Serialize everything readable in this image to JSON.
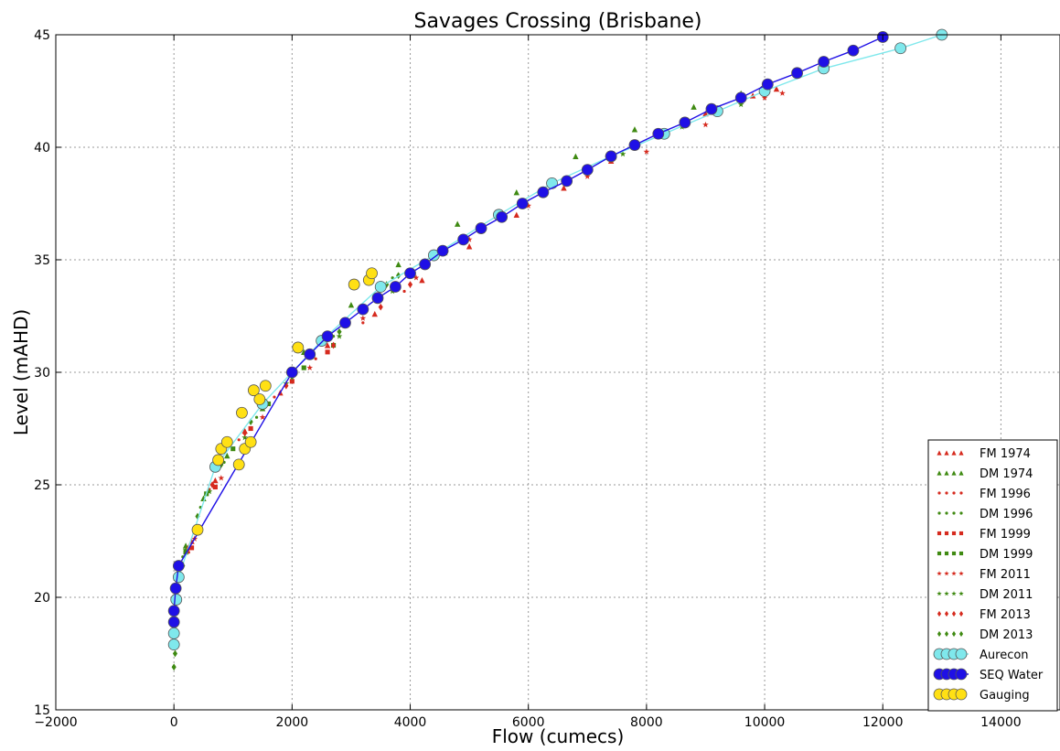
{
  "chart_data": {
    "type": "scatter",
    "title": "Savages Crossing (Brisbane)",
    "xlabel": "Flow (cumecs)",
    "ylabel": "Level (mAHD)",
    "xlim": [
      -2000,
      15000
    ],
    "ylim": [
      15,
      45
    ],
    "xticks": [
      "−2000",
      "0",
      "2000",
      "4000",
      "6000",
      "8000",
      "10000",
      "12000",
      "14000"
    ],
    "yticks": [
      "15",
      "20",
      "25",
      "30",
      "35",
      "40",
      "45"
    ],
    "grid": true,
    "legend_position": "bottom-right",
    "series": [
      {
        "name": "FM 1974",
        "color": "#d62a1e",
        "marker": "triangle",
        "points": [
          [
            300,
            22.5
          ],
          [
            700,
            25.2
          ],
          [
            1200,
            27.4
          ],
          [
            1800,
            29.1
          ],
          [
            2600,
            31.2
          ],
          [
            3400,
            32.6
          ],
          [
            4200,
            34.1
          ],
          [
            5000,
            35.6
          ],
          [
            5800,
            37.0
          ],
          [
            6600,
            38.2
          ],
          [
            7400,
            39.4
          ],
          [
            8200,
            40.5
          ],
          [
            9000,
            41.5
          ],
          [
            9800,
            42.3
          ],
          [
            10200,
            42.6
          ]
        ]
      },
      {
        "name": "DM 1974",
        "color": "#3f8a12",
        "marker": "triangle",
        "points": [
          [
            200,
            22.3
          ],
          [
            500,
            24.4
          ],
          [
            900,
            26.3
          ],
          [
            1500,
            28.4
          ],
          [
            2200,
            30.9
          ],
          [
            3000,
            33.0
          ],
          [
            3800,
            34.8
          ],
          [
            4800,
            36.6
          ],
          [
            5800,
            38.0
          ],
          [
            6800,
            39.6
          ],
          [
            7800,
            40.8
          ],
          [
            8800,
            41.8
          ],
          [
            9600,
            42.4
          ],
          [
            10000,
            42.7
          ]
        ]
      },
      {
        "name": "FM 1996",
        "color": "#d62a1e",
        "marker": "dot",
        "points": [
          [
            250,
            22.0
          ],
          [
            600,
            24.8
          ],
          [
            1100,
            27.0
          ],
          [
            1700,
            28.9
          ],
          [
            2400,
            30.6
          ],
          [
            3200,
            32.2
          ],
          [
            3900,
            33.6
          ]
        ]
      },
      {
        "name": "DM 1996",
        "color": "#3f8a12",
        "marker": "dot",
        "points": [
          [
            150,
            21.8
          ],
          [
            450,
            24.0
          ],
          [
            850,
            26.0
          ],
          [
            1400,
            28.0
          ],
          [
            2000,
            29.9
          ],
          [
            2700,
            31.6
          ],
          [
            3500,
            33.8
          ],
          [
            3700,
            34.2
          ]
        ]
      },
      {
        "name": "FM 1999",
        "color": "#d62a1e",
        "marker": "square",
        "points": [
          [
            300,
            22.2
          ],
          [
            700,
            24.9
          ],
          [
            1300,
            27.5
          ],
          [
            2000,
            29.6
          ],
          [
            2600,
            30.9
          ]
        ]
      },
      {
        "name": "DM 1999",
        "color": "#3f8a12",
        "marker": "square",
        "points": [
          [
            200,
            22.0
          ],
          [
            550,
            24.6
          ],
          [
            1000,
            26.6
          ],
          [
            1600,
            28.6
          ],
          [
            2200,
            30.2
          ],
          [
            2700,
            31.2
          ]
        ]
      },
      {
        "name": "FM 2011",
        "color": "#d62a1e",
        "marker": "star",
        "points": [
          [
            350,
            22.6
          ],
          [
            800,
            25.3
          ],
          [
            1500,
            28.0
          ],
          [
            2300,
            30.2
          ],
          [
            3200,
            32.4
          ],
          [
            4100,
            34.2
          ],
          [
            5000,
            35.9
          ],
          [
            6000,
            37.4
          ],
          [
            7000,
            38.7
          ],
          [
            8000,
            39.8
          ],
          [
            9000,
            41.0
          ],
          [
            10000,
            42.2
          ],
          [
            10300,
            42.4
          ]
        ]
      },
      {
        "name": "DM 2011",
        "color": "#3f8a12",
        "marker": "star",
        "points": [
          [
            200,
            22.1
          ],
          [
            600,
            24.7
          ],
          [
            1200,
            27.1
          ],
          [
            1900,
            29.5
          ],
          [
            2800,
            31.6
          ],
          [
            3700,
            33.6
          ],
          [
            4600,
            35.3
          ],
          [
            5600,
            36.9
          ],
          [
            6600,
            38.5
          ],
          [
            7600,
            39.7
          ],
          [
            8600,
            40.9
          ],
          [
            9600,
            41.9
          ],
          [
            10000,
            42.5
          ]
        ]
      },
      {
        "name": "FM 2013",
        "color": "#d62a1e",
        "marker": "diamond",
        "points": [
          [
            250,
            22.2
          ],
          [
            650,
            25.0
          ],
          [
            1200,
            27.3
          ],
          [
            1900,
            29.4
          ],
          [
            2700,
            31.2
          ],
          [
            3500,
            32.9
          ],
          [
            4000,
            33.9
          ]
        ]
      },
      {
        "name": "DM 2013",
        "color": "#3f8a12",
        "marker": "diamond",
        "points": [
          [
            0,
            16.9
          ],
          [
            20,
            17.5
          ],
          [
            40,
            18.5
          ],
          [
            80,
            20.0
          ],
          [
            150,
            21.4
          ],
          [
            400,
            23.6
          ],
          [
            800,
            25.9
          ],
          [
            1300,
            27.8
          ],
          [
            2000,
            29.8
          ],
          [
            2800,
            31.8
          ],
          [
            3600,
            33.9
          ],
          [
            3800,
            34.3
          ]
        ]
      },
      {
        "name": "Aurecon",
        "color": "#7fe8ec",
        "marker": "circle",
        "line": true,
        "points": [
          [
            0,
            17.9
          ],
          [
            0,
            18.4
          ],
          [
            40,
            19.9
          ],
          [
            80,
            20.9
          ],
          [
            700,
            25.8
          ],
          [
            1500,
            28.6
          ],
          [
            2500,
            31.4
          ],
          [
            3500,
            33.8
          ],
          [
            4400,
            35.2
          ],
          [
            5500,
            37.0
          ],
          [
            6400,
            38.4
          ],
          [
            7400,
            39.6
          ],
          [
            8300,
            40.6
          ],
          [
            9200,
            41.6
          ],
          [
            10000,
            42.5
          ],
          [
            11000,
            43.5
          ],
          [
            12300,
            44.4
          ],
          [
            13000,
            45.0
          ]
        ]
      },
      {
        "name": "SEQ Water",
        "color": "#1f10e6",
        "marker": "circle",
        "line": true,
        "points": [
          [
            0,
            18.9
          ],
          [
            0,
            19.4
          ],
          [
            30,
            20.4
          ],
          [
            80,
            21.4
          ],
          [
            2000,
            30.0
          ],
          [
            2300,
            30.8
          ],
          [
            2600,
            31.6
          ],
          [
            2900,
            32.2
          ],
          [
            3200,
            32.8
          ],
          [
            3450,
            33.3
          ],
          [
            3750,
            33.8
          ],
          [
            4000,
            34.4
          ],
          [
            4250,
            34.8
          ],
          [
            4550,
            35.4
          ],
          [
            4900,
            35.9
          ],
          [
            5200,
            36.4
          ],
          [
            5550,
            36.9
          ],
          [
            5900,
            37.5
          ],
          [
            6250,
            38.0
          ],
          [
            6650,
            38.5
          ],
          [
            7000,
            39.0
          ],
          [
            7400,
            39.6
          ],
          [
            7800,
            40.1
          ],
          [
            8200,
            40.6
          ],
          [
            8650,
            41.1
          ],
          [
            9100,
            41.7
          ],
          [
            9600,
            42.2
          ],
          [
            10050,
            42.8
          ],
          [
            10550,
            43.3
          ],
          [
            11000,
            43.8
          ],
          [
            11500,
            44.3
          ],
          [
            12000,
            44.9
          ]
        ]
      },
      {
        "name": "Gauging",
        "color": "#ffe014",
        "marker": "circle",
        "points": [
          [
            400,
            23.0
          ],
          [
            750,
            26.1
          ],
          [
            800,
            26.6
          ],
          [
            900,
            26.9
          ],
          [
            1100,
            25.9
          ],
          [
            1150,
            28.2
          ],
          [
            1200,
            26.6
          ],
          [
            1300,
            26.9
          ],
          [
            1350,
            29.2
          ],
          [
            1450,
            28.8
          ],
          [
            1550,
            29.4
          ],
          [
            2100,
            31.1
          ],
          [
            3050,
            33.9
          ],
          [
            3300,
            34.1
          ],
          [
            3350,
            34.4
          ]
        ]
      }
    ]
  }
}
